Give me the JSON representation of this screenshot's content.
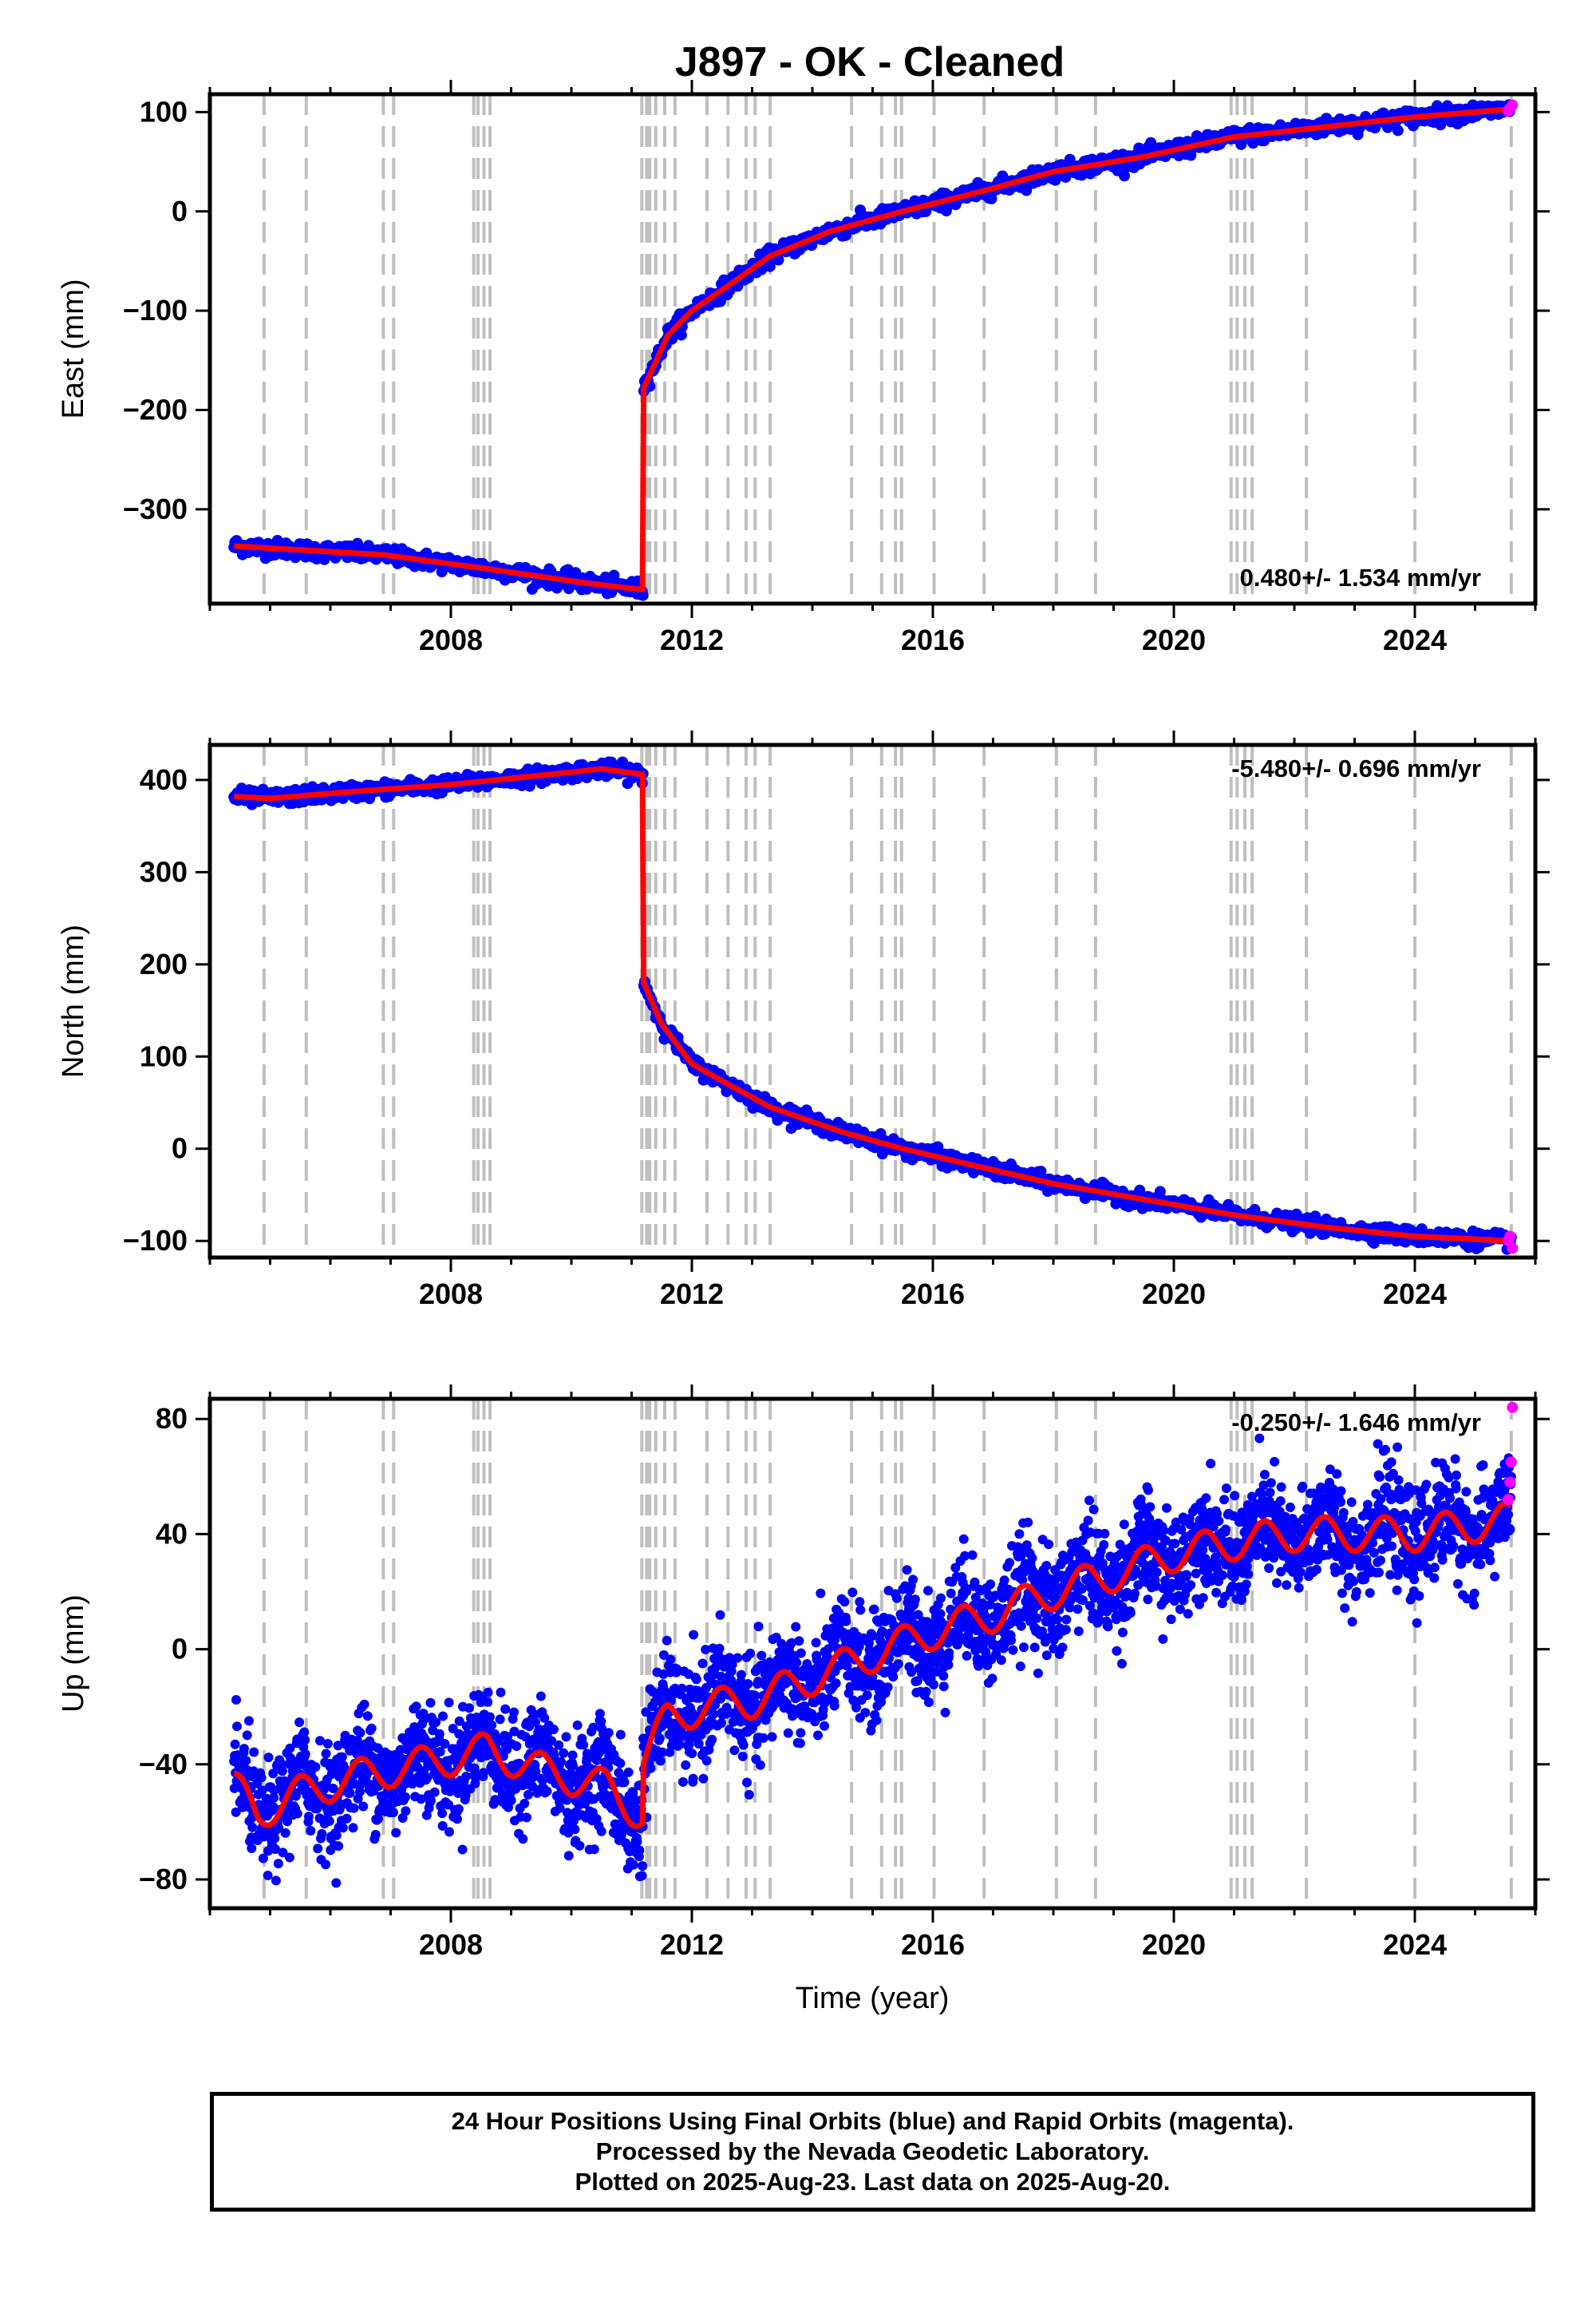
{
  "title": "J897  - OK - Cleaned",
  "xlabel": "Time (year)",
  "footer": {
    "line1": "24 Hour Positions Using Final Orbits (blue) and Rapid Orbits (magenta).",
    "line2": "Processed by the Nevada Geodetic Laboratory.",
    "line3": "Plotted on 2025-Aug-23. Last data on 2025-Aug-20."
  },
  "colors": {
    "final_orbits": "#0000ff",
    "rapid_orbits": "#ff00ff",
    "model": "#ff0000",
    "event_lines": "#bfbfbf"
  },
  "chart_data": [
    {
      "type": "scatter",
      "ylabel": "East (mm)",
      "rate_text": "0.480+/- 1.534 mm/yr",
      "rate_position": "bottom-right",
      "xlim": [
        2004.0,
        2026.0
      ],
      "ylim": [
        -395,
        118
      ],
      "xticks": [
        2008,
        2012,
        2016,
        2020,
        2024
      ],
      "yticks": [
        100,
        0,
        -100,
        -200,
        -300
      ],
      "ytick_labels": [
        "100",
        "0",
        "−100",
        "−200",
        "−300"
      ],
      "step_year": 2011.19,
      "model_segments": [
        {
          "x": [
            2004.4,
            2006.9,
            2008.6,
            2010.2,
            2011.18
          ],
          "y": [
            -337,
            -346,
            -360,
            -374,
            -381
          ]
        },
        {
          "x": [
            2011.2,
            2011.6,
            2012.0,
            2012.6,
            2013.3,
            2014.3,
            2015.5,
            2016.8,
            2018.0,
            2019.5,
            2021.0,
            2022.5,
            2024.0,
            2025.6
          ],
          "y": [
            -178,
            -125,
            -100,
            -75,
            -45,
            -20,
            0,
            20,
            40,
            55,
            75,
            85,
            95,
            103
          ]
        }
      ],
      "scatter_spread": 4,
      "rapid_points": {
        "x": [
          2025.55,
          2025.58,
          2025.62
        ],
        "y": [
          101,
          104,
          107
        ]
      }
    },
    {
      "type": "scatter",
      "ylabel": "North (mm)",
      "rate_text": "-5.480+/- 0.696 mm/yr",
      "rate_position": "top-right",
      "xlim": [
        2004.0,
        2026.0
      ],
      "ylim": [
        -118,
        438
      ],
      "xticks": [
        2008,
        2012,
        2016,
        2020,
        2024
      ],
      "yticks": [
        400,
        300,
        200,
        100,
        0,
        -100
      ],
      "ytick_labels": [
        "400",
        "300",
        "200",
        "100",
        "0",
        "−100"
      ],
      "step_year": 2011.19,
      "model_segments": [
        {
          "x": [
            2004.4,
            2005.0,
            2006.5,
            2008.0,
            2009.5,
            2010.5,
            2011.18
          ],
          "y": [
            382,
            380,
            388,
            395,
            405,
            412,
            406
          ]
        },
        {
          "x": [
            2011.2,
            2011.5,
            2012.0,
            2012.6,
            2013.3,
            2014.5,
            2015.5,
            2016.8,
            2018.0,
            2019.5,
            2021.0,
            2022.5,
            2024.0,
            2025.6
          ],
          "y": [
            180,
            135,
            92,
            70,
            45,
            18,
            0,
            -20,
            -38,
            -55,
            -72,
            -85,
            -95,
            -100
          ]
        }
      ],
      "scatter_spread": 4,
      "rapid_points": {
        "x": [
          2025.55,
          2025.58,
          2025.62
        ],
        "y": [
          -100,
          -95,
          -108
        ]
      }
    },
    {
      "type": "scatter",
      "ylabel": "Up (mm)",
      "rate_text": "-0.250+/- 1.646 mm/yr",
      "rate_position": "top-right",
      "xlim": [
        2004.0,
        2026.0
      ],
      "ylim": [
        -90,
        87
      ],
      "xticks": [
        2008,
        2012,
        2016,
        2020,
        2024
      ],
      "yticks": [
        80,
        40,
        0,
        -40,
        -80
      ],
      "ytick_labels": [
        "80",
        "40",
        "0",
        "−40",
        "−80"
      ],
      "step_year": 2011.19,
      "seasonal_amplitude": 6,
      "model_segments": [
        {
          "x": [
            2004.4,
            2004.8,
            2005.5,
            2006.5,
            2008.0,
            2008.6,
            2009.5,
            2010.6,
            2011.18
          ],
          "y": [
            -48,
            -57,
            -50,
            -44,
            -38,
            -35,
            -42,
            -48,
            -58
          ]
        },
        {
          "x": [
            2011.2,
            2011.6,
            2012.2,
            2013.0,
            2014.0,
            2015.0,
            2016.0,
            2017.0,
            2018.0,
            2019.0,
            2020.0,
            2021.0,
            2022.0,
            2023.0,
            2024.0,
            2025.6
          ],
          "y": [
            -38,
            -24,
            -20,
            -18,
            -10,
            -2,
            6,
            12,
            20,
            26,
            33,
            37,
            40,
            40,
            40,
            45
          ]
        }
      ],
      "scatter_spread": 9,
      "rapid_points": {
        "x": [
          2025.55,
          2025.58,
          2025.6,
          2025.62
        ],
        "y": [
          52,
          58,
          65,
          84
        ]
      }
    }
  ],
  "event_years": [
    2004.9,
    2005.6,
    2006.88,
    2007.05,
    2008.38,
    2008.45,
    2008.55,
    2008.65,
    2011.17,
    2011.25,
    2011.3,
    2011.4,
    2011.55,
    2011.72,
    2012.25,
    2012.6,
    2012.9,
    2013.05,
    2013.3,
    2014.65,
    2015.15,
    2015.38,
    2015.48,
    2016.02,
    2016.85,
    2018.05,
    2018.7,
    2020.95,
    2021.05,
    2021.18,
    2021.3,
    2022.2,
    2024.0,
    2025.6
  ]
}
